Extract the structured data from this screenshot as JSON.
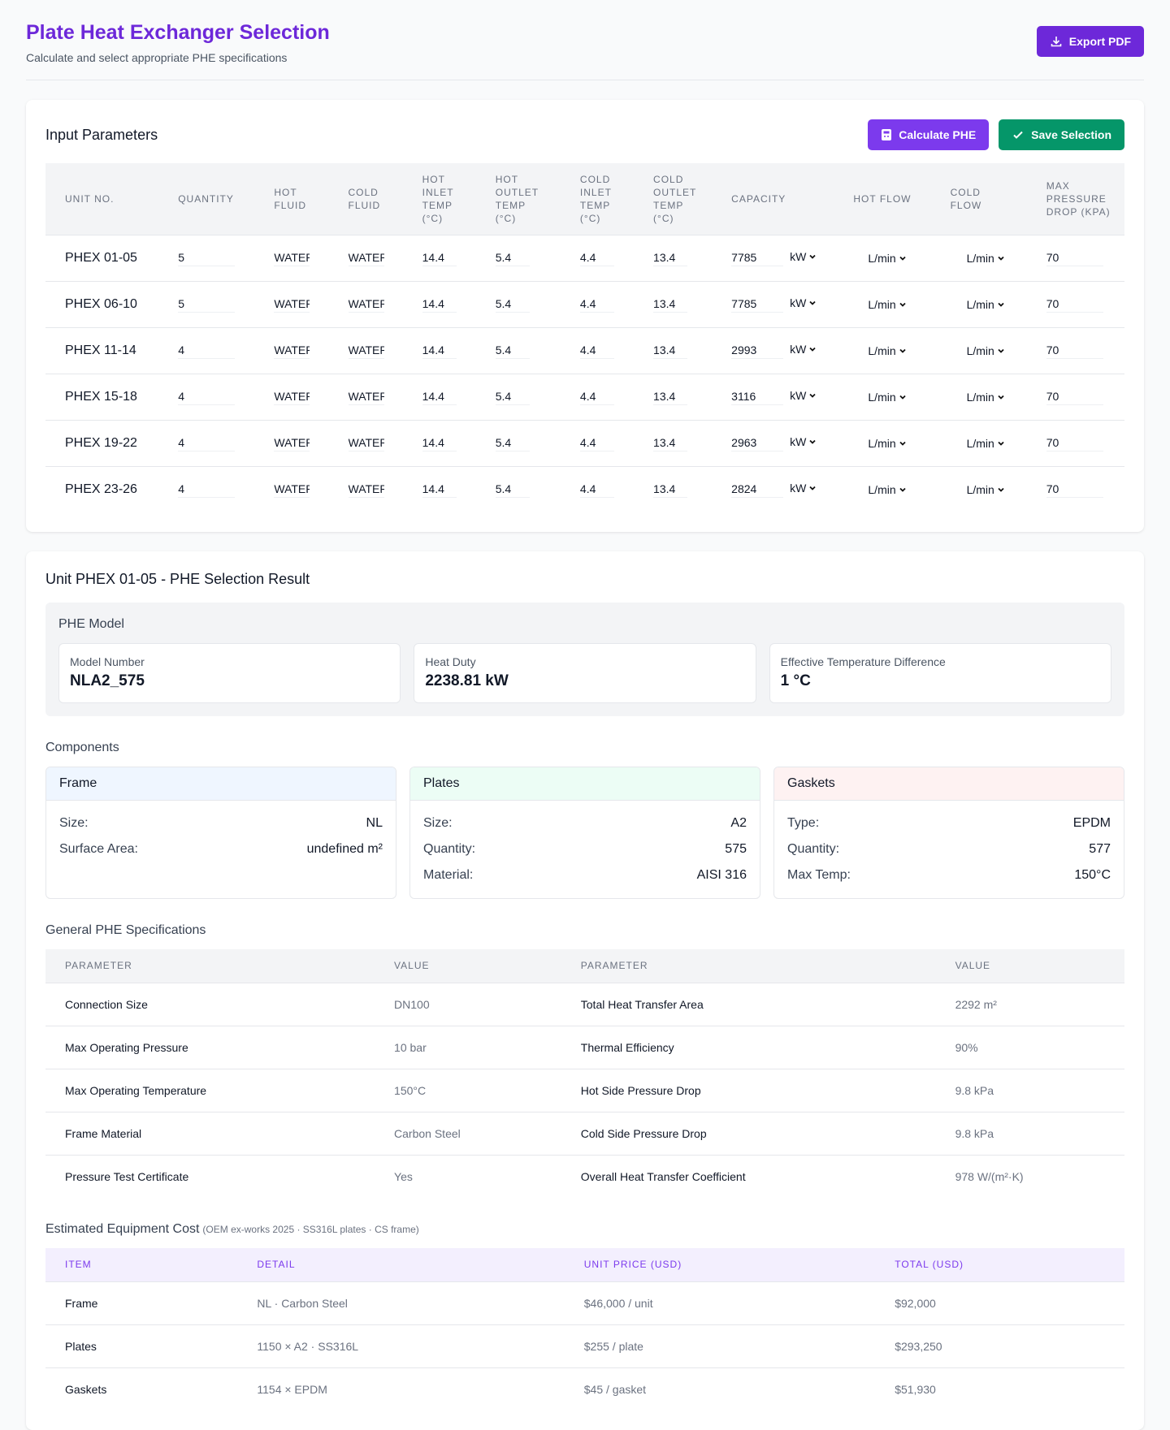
{
  "header": {
    "title": "Plate Heat Exchanger Selection",
    "subtitle": "Calculate and select appropriate PHE specifications",
    "export_button": "Export PDF"
  },
  "input": {
    "title": "Input Parameters",
    "buttons": [
      "Calculate PHE",
      "Save Selection"
    ],
    "columns": [
      "UNIT NO.",
      "QUANTITY",
      "HOT FLUID",
      "COLD FLUID",
      "HOT INLET TEMP (°C)",
      "HOT OUTLET TEMP (°C)",
      "COLD INLET TEMP (°C)",
      "COLD OUTLET TEMP (°C)",
      "CAPACITY",
      "HOT FLOW",
      "COLD FLOW",
      "MAX PRESSURE DROP (KPA)"
    ],
    "rows": [
      [
        "PHEX 01-05",
        "5",
        "WATER",
        "WATER",
        "14.4",
        "5.4",
        "4.4",
        "13.4",
        "7785",
        "kW",
        "L/min",
        "L/min",
        "70"
      ],
      [
        "PHEX 06-10",
        "5",
        "WATER",
        "WATER",
        "14.4",
        "5.4",
        "4.4",
        "13.4",
        "7785",
        "kW",
        "L/min",
        "L/min",
        "70"
      ],
      [
        "PHEX 11-14",
        "4",
        "WATER",
        "WATER",
        "14.4",
        "5.4",
        "4.4",
        "13.4",
        "2993",
        "kW",
        "L/min",
        "L/min",
        "70"
      ],
      [
        "PHEX 15-18",
        "4",
        "WATER",
        "WATER",
        "14.4",
        "5.4",
        "4.4",
        "13.4",
        "3116",
        "kW",
        "L/min",
        "L/min",
        "70"
      ],
      [
        "PHEX 19-22",
        "4",
        "WATER",
        "WATER",
        "14.4",
        "5.4",
        "4.4",
        "13.4",
        "2963",
        "kW",
        "L/min",
        "L/min",
        "70"
      ],
      [
        "PHEX 23-26",
        "4",
        "WATER",
        "WATER",
        "14.4",
        "5.4",
        "4.4",
        "13.4",
        "2824",
        "kW",
        "L/min",
        "L/min",
        "70"
      ]
    ]
  },
  "result": {
    "title": "Unit PHEX 01-05 - PHE Selection Result",
    "model": {
      "label": "PHE Model",
      "cards": [
        {
          "label": "Model Number",
          "value": "NLA2_575"
        },
        {
          "label": "Heat Duty",
          "value": "2238.81 kW"
        },
        {
          "label": "Effective Temperature Difference",
          "value": "1 °C"
        }
      ]
    },
    "components": {
      "label": "Components",
      "cards": [
        {
          "title": "Frame",
          "rows": [
            [
              "Size:",
              "NL"
            ],
            [
              "Surface Area:",
              "undefined m²"
            ]
          ]
        },
        {
          "title": "Plates",
          "rows": [
            [
              "Size:",
              "A2"
            ],
            [
              "Quantity:",
              "575"
            ],
            [
              "Material:",
              "AISI 316"
            ]
          ]
        },
        {
          "title": "Gaskets",
          "rows": [
            [
              "Type:",
              "EPDM"
            ],
            [
              "Quantity:",
              "577"
            ],
            [
              "Max Temp:",
              "150°C"
            ]
          ]
        }
      ]
    },
    "specs": {
      "title": "General PHE Specifications",
      "headers": [
        "PARAMETER",
        "VALUE",
        "PARAMETER",
        "VALUE"
      ],
      "rows": [
        [
          "Connection Size",
          "DN100",
          "Total Heat Transfer Area",
          "2292 m²"
        ],
        [
          "Max Operating Pressure",
          "10 bar",
          "Thermal Efficiency",
          "90%"
        ],
        [
          "Max Operating Temperature",
          "150°C",
          "Hot Side Pressure Drop",
          "9.8 kPa"
        ],
        [
          "Frame Material",
          "Carbon Steel",
          "Cold Side Pressure Drop",
          "9.8 kPa"
        ],
        [
          "Pressure Test Certificate",
          "Yes",
          "Overall Heat Transfer Coefficient",
          "978 W/(m²·K)"
        ]
      ]
    },
    "cost": {
      "title": "Estimated Equipment Cost",
      "note": "(OEM ex-works 2025 · SS316L plates · CS frame)",
      "headers": [
        "ITEM",
        "DETAIL",
        "UNIT PRICE (USD)",
        "TOTAL (USD)"
      ],
      "rows": [
        [
          "Frame",
          "NL · Carbon Steel",
          "$46,000 / unit",
          "$92,000"
        ],
        [
          "Plates",
          "1150 × A2 · SS316L",
          "$255 / plate",
          "$293,250"
        ],
        [
          "Gaskets",
          "1154 × EPDM",
          "$45 / gasket",
          "$51,930"
        ]
      ]
    }
  }
}
